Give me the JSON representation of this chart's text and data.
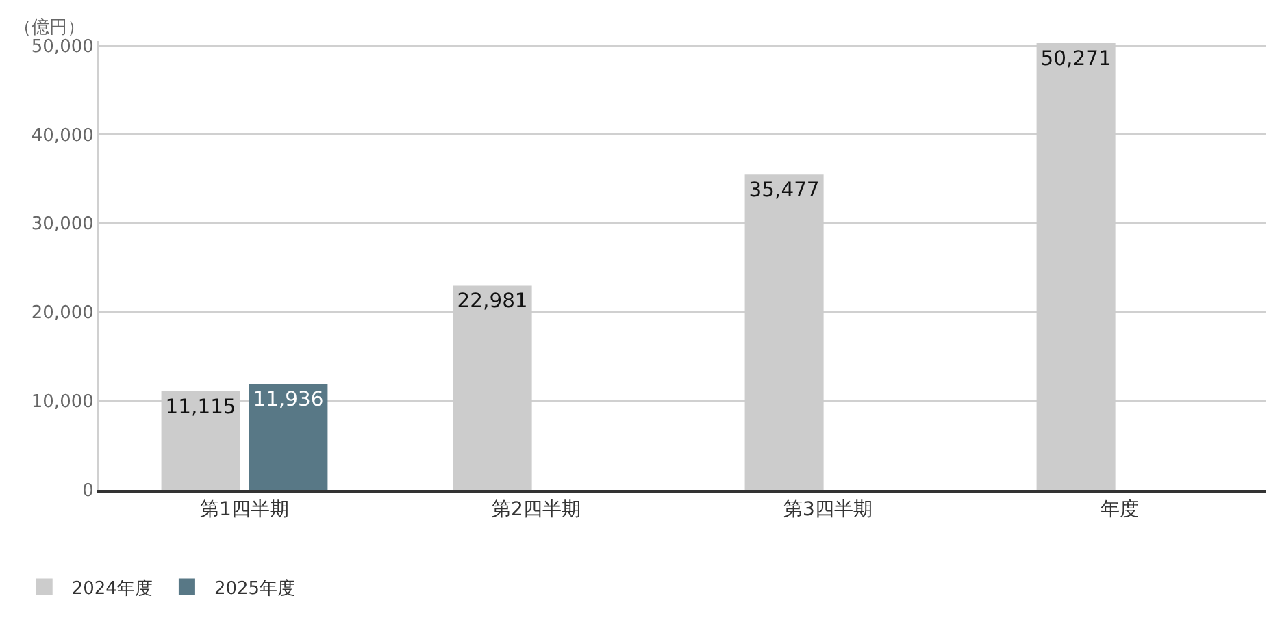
{
  "chart_data": {
    "type": "bar",
    "ylabel": "（億円）",
    "categories": [
      "第1四半期",
      "第2四半期",
      "第3四半期",
      "年度"
    ],
    "series": [
      {
        "name": "2024年度",
        "color": "#cccccc",
        "values": [
          11115,
          22981,
          35477,
          50271
        ],
        "value_labels": [
          "11,115",
          "22,981",
          "35,477",
          "50,271"
        ]
      },
      {
        "name": "2025年度",
        "color": "#587886",
        "values": [
          11936,
          null,
          null,
          null
        ],
        "value_labels": [
          "11,936",
          null,
          null,
          null
        ]
      }
    ],
    "ylim": [
      0,
      50500
    ],
    "yticks": [
      {
        "value": 0,
        "label": "0"
      },
      {
        "value": 10000,
        "label": "10,000"
      },
      {
        "value": 20000,
        "label": "20,000"
      },
      {
        "value": 30000,
        "label": "30,000"
      },
      {
        "value": 40000,
        "label": "40,000"
      },
      {
        "value": 50000,
        "label": "50,000"
      }
    ],
    "grid": "y",
    "legend": "bottom left"
  }
}
